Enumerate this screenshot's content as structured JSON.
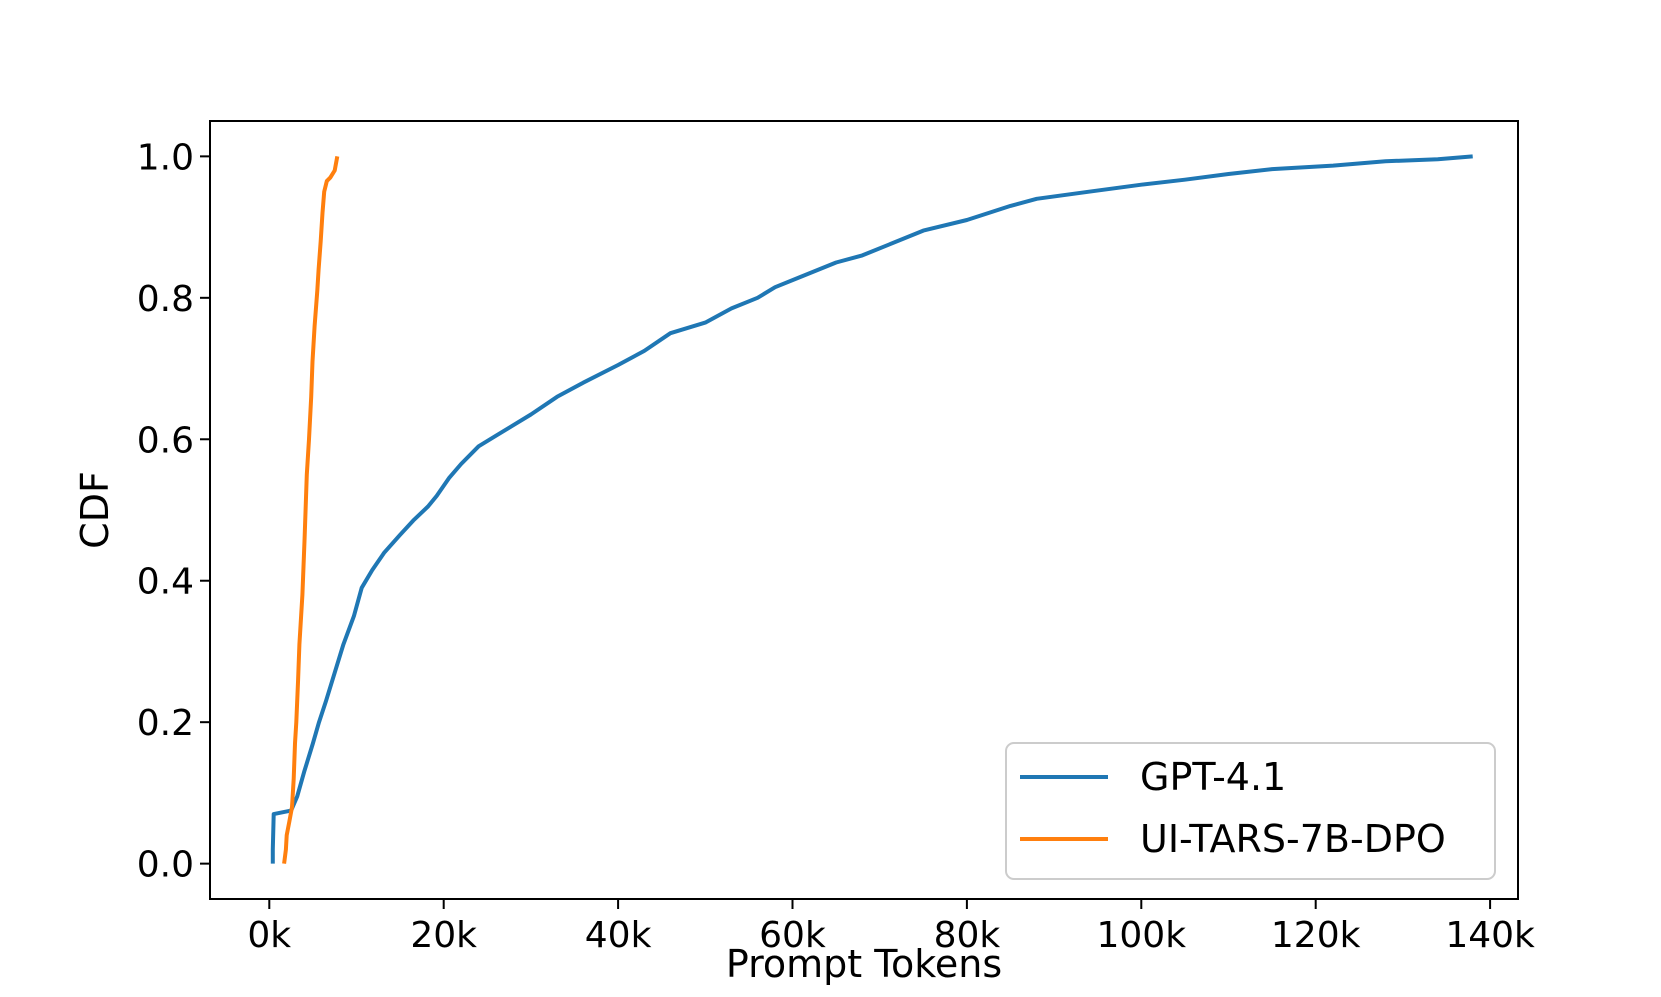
{
  "chart_data": {
    "type": "line",
    "title": "",
    "xlabel": "Prompt Tokens",
    "ylabel": "CDF",
    "xlim": [
      -6800,
      143200
    ],
    "ylim": [
      -0.05,
      1.05
    ],
    "xticks": [
      0,
      20000,
      40000,
      60000,
      80000,
      100000,
      120000,
      140000
    ],
    "xtick_labels": [
      "0k",
      "20k",
      "40k",
      "60k",
      "80k",
      "100k",
      "120k",
      "140k"
    ],
    "yticks": [
      0.0,
      0.2,
      0.4,
      0.6,
      0.8,
      1.0
    ],
    "ytick_labels": [
      "0.0",
      "0.2",
      "0.4",
      "0.6",
      "0.8",
      "1.0"
    ],
    "grid": false,
    "legend_position": "bottom-right",
    "series": [
      {
        "name": "GPT-4.1",
        "color": "#1f77b4",
        "x": [
          400,
          400,
          500,
          2500,
          3200,
          4000,
          5000,
          5700,
          6500,
          7500,
          8500,
          9700,
          10600,
          11800,
          13200,
          15000,
          16500,
          18200,
          19200,
          20600,
          22000,
          24000,
          26000,
          28000,
          30000,
          33000,
          36000,
          40000,
          43000,
          46000,
          50000,
          53000,
          56000,
          58000,
          61000,
          65000,
          68000,
          71000,
          75000,
          80000,
          85000,
          88000,
          94000,
          100000,
          105000,
          110000,
          115000,
          122000,
          128000,
          134000,
          138000
        ],
        "y": [
          0.0,
          0.02,
          0.07,
          0.075,
          0.095,
          0.13,
          0.17,
          0.2,
          0.23,
          0.27,
          0.31,
          0.35,
          0.39,
          0.415,
          0.44,
          0.465,
          0.485,
          0.505,
          0.52,
          0.545,
          0.565,
          0.59,
          0.605,
          0.62,
          0.635,
          0.66,
          0.68,
          0.705,
          0.725,
          0.75,
          0.765,
          0.785,
          0.8,
          0.815,
          0.83,
          0.85,
          0.86,
          0.875,
          0.895,
          0.91,
          0.93,
          0.94,
          0.95,
          0.96,
          0.967,
          0.975,
          0.982,
          0.987,
          0.993,
          0.996,
          1.0
        ]
      },
      {
        "name": "UI-TARS-7B-DPO",
        "color": "#ff7f0e",
        "x": [
          1700,
          1900,
          2000,
          2300,
          2600,
          2800,
          2950,
          3100,
          3300,
          3450,
          3800,
          4050,
          4300,
          4550,
          4800,
          4950,
          5200,
          5500,
          5650,
          5900,
          6100,
          6300,
          6600,
          7000,
          7500,
          7800
        ],
        "y": [
          0.0,
          0.02,
          0.04,
          0.06,
          0.08,
          0.12,
          0.17,
          0.2,
          0.26,
          0.31,
          0.38,
          0.46,
          0.55,
          0.6,
          0.66,
          0.71,
          0.76,
          0.81,
          0.84,
          0.88,
          0.92,
          0.95,
          0.965,
          0.97,
          0.98,
          1.0
        ]
      }
    ]
  }
}
